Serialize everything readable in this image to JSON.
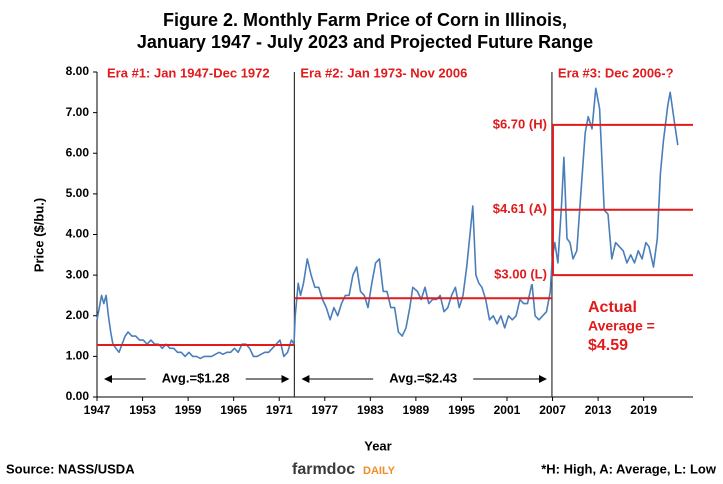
{
  "chart_data": {
    "type": "line",
    "title": [
      "Figure 2. Monthly Farm Price of Corn in Illinois,",
      "January 1947 - July 2023 and Projected Future Range"
    ],
    "y_label": "Price ($/bu.)",
    "x_label": "Year",
    "source": "Source: NASS/USDA",
    "logo": [
      "farmdoc",
      "DAILY"
    ],
    "footnote": "*H: High, A: Average, L: Low",
    "xlim": [
      1947,
      2025.5
    ],
    "ylim": [
      0,
      8
    ],
    "xticks": [
      1947,
      1953,
      1959,
      1965,
      1971,
      1977,
      1983,
      1989,
      1995,
      2001,
      2007,
      2013,
      2019
    ],
    "yticks": [
      {
        "value": 0,
        "label": "0.00"
      },
      {
        "value": 1,
        "label": "1.00"
      },
      {
        "value": 2,
        "label": "2.00"
      },
      {
        "value": 3,
        "label": "3.00"
      },
      {
        "value": 4,
        "label": "4.00"
      },
      {
        "value": 5,
        "label": "5.00"
      },
      {
        "value": 6,
        "label": "6.00"
      },
      {
        "value": 7,
        "label": "7.00"
      },
      {
        "value": 8,
        "label": "8.00"
      }
    ],
    "eras": [
      {
        "label": "Era #1: Jan 1947-Dec 1972",
        "start": 1947
      },
      {
        "label": "Era #2: Jan 1973- Nov 2006",
        "start": 1973
      },
      {
        "label": "Era #3: Dec 2006-?",
        "start": 2006.92
      }
    ],
    "average_lines": [
      {
        "value": 1.28,
        "label": "Avg.=$1.28",
        "start": 1947,
        "end": 1973
      },
      {
        "value": 2.43,
        "label": "Avg.=$2.43",
        "start": 1973,
        "end": 2006.92
      }
    ],
    "range_lines": [
      {
        "value": 6.7,
        "label": "$6.70 (H)"
      },
      {
        "value": 4.61,
        "label": "$4.61 (A)"
      },
      {
        "value": 3.0,
        "label": "$3.00 (L)"
      }
    ],
    "actual_average": [
      "Actual",
      "Average =",
      "$4.59"
    ],
    "line_color": "#4a7ebb",
    "ref_color": "#e31a1c",
    "series": [
      {
        "name": "Monthly price",
        "color": "#4a7ebb",
        "x": [
          1947.0,
          1947.3,
          1947.6,
          1947.9,
          1948.2,
          1948.5,
          1948.8,
          1949.1,
          1949.5,
          1949.9,
          1950.3,
          1950.7,
          1951.1,
          1951.6,
          1952.1,
          1952.6,
          1953.1,
          1953.6,
          1954.1,
          1954.6,
          1955.1,
          1955.6,
          1956.1,
          1956.6,
          1957.1,
          1957.6,
          1958.1,
          1958.6,
          1959.1,
          1959.6,
          1960.1,
          1960.6,
          1961.1,
          1961.6,
          1962.1,
          1962.6,
          1963.1,
          1963.6,
          1964.1,
          1964.6,
          1965.1,
          1965.6,
          1966.1,
          1966.6,
          1967.1,
          1967.6,
          1968.1,
          1968.6,
          1969.1,
          1969.6,
          1970.1,
          1970.6,
          1971.1,
          1971.6,
          1972.1,
          1972.6,
          1972.95,
          1973.1,
          1973.5,
          1973.8,
          1974.2,
          1974.7,
          1975.2,
          1975.7,
          1976.2,
          1976.7,
          1977.2,
          1977.7,
          1978.2,
          1978.7,
          1979.2,
          1979.7,
          1980.2,
          1980.7,
          1981.2,
          1981.7,
          1982.2,
          1982.7,
          1983.2,
          1983.7,
          1984.2,
          1984.7,
          1985.2,
          1985.7,
          1986.2,
          1986.7,
          1987.2,
          1987.7,
          1988.2,
          1988.6,
          1989.2,
          1989.7,
          1990.2,
          1990.7,
          1991.2,
          1991.7,
          1992.2,
          1992.7,
          1993.2,
          1993.7,
          1994.2,
          1994.7,
          1995.2,
          1995.7,
          1996.5,
          1996.9,
          1997.3,
          1997.7,
          1998.2,
          1998.7,
          1999.2,
          1999.7,
          2000.2,
          2000.7,
          2001.2,
          2001.7,
          2002.2,
          2002.7,
          2003.2,
          2003.7,
          2004.3,
          2004.7,
          2005.2,
          2005.7,
          2006.2,
          2006.7,
          2006.95,
          2007.3,
          2007.7,
          2008.2,
          2008.5,
          2008.9,
          2009.3,
          2009.7,
          2010.2,
          2010.8,
          2011.3,
          2011.7,
          2012.2,
          2012.7,
          2013.2,
          2013.8,
          2014.3,
          2014.8,
          2015.3,
          2015.8,
          2016.3,
          2016.8,
          2017.3,
          2017.8,
          2018.3,
          2018.8,
          2019.3,
          2019.7,
          2020.3,
          2020.8,
          2021.2,
          2021.6,
          2022.2,
          2022.5,
          2023.1,
          2023.5
        ],
        "values": [
          1.9,
          2.2,
          2.5,
          2.3,
          2.5,
          2.0,
          1.6,
          1.3,
          1.2,
          1.1,
          1.3,
          1.5,
          1.6,
          1.5,
          1.5,
          1.4,
          1.4,
          1.3,
          1.4,
          1.3,
          1.3,
          1.2,
          1.3,
          1.2,
          1.2,
          1.1,
          1.1,
          1.0,
          1.1,
          1.0,
          1.0,
          0.95,
          1.0,
          1.0,
          1.0,
          1.05,
          1.1,
          1.05,
          1.1,
          1.1,
          1.2,
          1.1,
          1.3,
          1.3,
          1.2,
          1.0,
          1.0,
          1.05,
          1.1,
          1.1,
          1.2,
          1.3,
          1.4,
          1.0,
          1.1,
          1.4,
          1.3,
          2.0,
          2.8,
          2.5,
          2.8,
          3.4,
          3.0,
          2.7,
          2.7,
          2.4,
          2.2,
          1.9,
          2.2,
          2.0,
          2.3,
          2.5,
          2.5,
          3.0,
          3.2,
          2.6,
          2.5,
          2.2,
          2.8,
          3.3,
          3.4,
          2.6,
          2.6,
          2.2,
          2.2,
          1.6,
          1.5,
          1.7,
          2.2,
          2.7,
          2.6,
          2.4,
          2.7,
          2.3,
          2.4,
          2.4,
          2.5,
          2.1,
          2.2,
          2.5,
          2.7,
          2.2,
          2.5,
          3.2,
          4.7,
          3.0,
          2.8,
          2.7,
          2.4,
          1.9,
          2.0,
          1.8,
          2.0,
          1.7,
          2.0,
          1.9,
          2.0,
          2.4,
          2.3,
          2.3,
          2.8,
          2.0,
          1.9,
          2.0,
          2.1,
          2.6,
          3.4,
          3.8,
          3.3,
          4.8,
          5.9,
          3.9,
          3.8,
          3.4,
          3.6,
          5.2,
          6.5,
          6.9,
          6.6,
          7.6,
          7.1,
          4.6,
          4.5,
          3.4,
          3.8,
          3.7,
          3.6,
          3.3,
          3.5,
          3.3,
          3.6,
          3.4,
          3.8,
          3.7,
          3.2,
          3.9,
          5.5,
          6.3,
          7.2,
          7.5,
          6.7,
          6.2
        ]
      }
    ]
  }
}
